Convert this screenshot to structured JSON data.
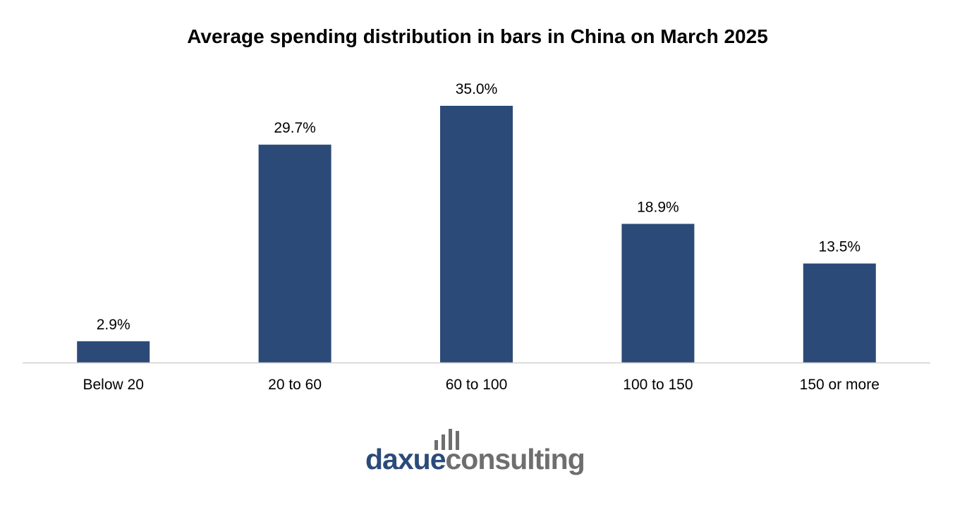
{
  "chart_data": {
    "type": "bar",
    "title": "Average spending distribution in bars in China on March 2025",
    "categories": [
      "Below 20",
      "20 to 60",
      "60 to 100",
      "100 to 150",
      "150 or more"
    ],
    "values": [
      2.9,
      29.7,
      35.0,
      18.9,
      13.5
    ],
    "value_labels": [
      "2.9%",
      "29.7%",
      "35.0%",
      "18.9%",
      "13.5%"
    ],
    "unit": "%",
    "ylim": [
      0,
      35.0
    ],
    "grid": false,
    "legend": "none",
    "bar_color": "#2c4a77",
    "axis_color": "#d0d0d0"
  },
  "logo": {
    "brand_part1": "daxue",
    "brand_part2": "consulting",
    "brand_color_1": "#2b4a78",
    "brand_color_2": "#6e6e6e",
    "icon": "bar-chart-logo-icon"
  }
}
